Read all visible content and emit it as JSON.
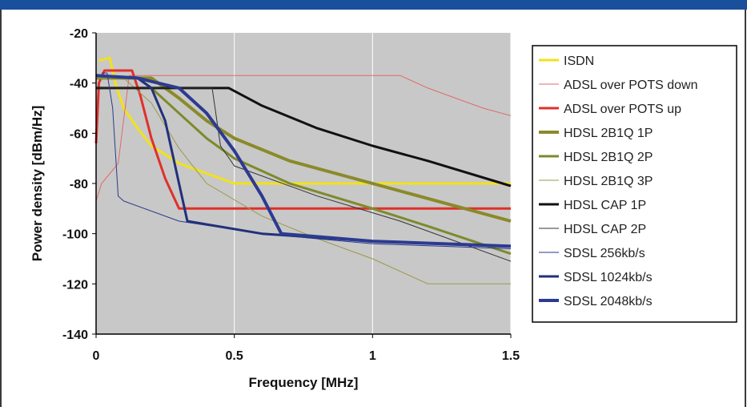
{
  "chart_data": {
    "type": "line",
    "xlabel": "Frequency [MHz]",
    "ylabel": "Power density [dBm/Hz]",
    "xlim": [
      0,
      1.5
    ],
    "ylim": [
      -140,
      -20
    ],
    "xticks": [
      0,
      0.5,
      1,
      1.5
    ],
    "xtick_labels": [
      "0",
      "0.5",
      "1",
      "1.5"
    ],
    "yticks": [
      -20,
      -40,
      -60,
      -80,
      -100,
      -120,
      -140
    ],
    "ytick_labels": [
      "-20",
      "-40",
      "-60",
      "-80",
      "-100",
      "-120",
      "-140"
    ],
    "grid": "vertical",
    "plot_background": "#c8c8c8",
    "legend_placement": "right",
    "series": [
      {
        "name": "ISDN",
        "color": "#f2e21a",
        "width": 3,
        "points": [
          [
            0.01,
            -31
          ],
          [
            0.05,
            -30
          ],
          [
            0.07,
            -40
          ],
          [
            0.1,
            -50
          ],
          [
            0.15,
            -58
          ],
          [
            0.2,
            -65
          ],
          [
            0.3,
            -72
          ],
          [
            0.4,
            -76
          ],
          [
            0.5,
            -80
          ],
          [
            0.8,
            -80
          ],
          [
            1.2,
            -80
          ],
          [
            1.5,
            -80
          ]
        ]
      },
      {
        "name": "ADSL over POTS down",
        "color": "#e06a6a",
        "width": 1,
        "points": [
          [
            0.0,
            -87
          ],
          [
            0.02,
            -80
          ],
          [
            0.05,
            -76
          ],
          [
            0.08,
            -72
          ],
          [
            0.12,
            -37
          ],
          [
            1.1,
            -37
          ],
          [
            1.2,
            -42
          ],
          [
            1.3,
            -46
          ],
          [
            1.4,
            -50
          ],
          [
            1.5,
            -53
          ]
        ]
      },
      {
        "name": "ADSL over POTS up",
        "color": "#e0302a",
        "width": 3,
        "points": [
          [
            0.0,
            -64
          ],
          [
            0.01,
            -40
          ],
          [
            0.03,
            -35
          ],
          [
            0.13,
            -35
          ],
          [
            0.16,
            -45
          ],
          [
            0.2,
            -62
          ],
          [
            0.25,
            -78
          ],
          [
            0.3,
            -90
          ],
          [
            0.8,
            -90
          ],
          [
            1.5,
            -90
          ]
        ]
      },
      {
        "name": "HDSL 2B1Q 1P",
        "color": "#8a8a2a",
        "width": 4,
        "points": [
          [
            0.0,
            -38
          ],
          [
            0.2,
            -38
          ],
          [
            0.3,
            -46
          ],
          [
            0.4,
            -55
          ],
          [
            0.5,
            -62
          ],
          [
            0.7,
            -71
          ],
          [
            1.0,
            -80
          ],
          [
            1.2,
            -86
          ],
          [
            1.5,
            -95
          ]
        ]
      },
      {
        "name": "HDSL 2B1Q 2P",
        "color": "#7e8a2c",
        "width": 3,
        "points": [
          [
            0.0,
            -38
          ],
          [
            0.15,
            -38
          ],
          [
            0.2,
            -42
          ],
          [
            0.3,
            -52
          ],
          [
            0.4,
            -62
          ],
          [
            0.5,
            -70
          ],
          [
            0.7,
            -80
          ],
          [
            1.0,
            -90
          ],
          [
            1.2,
            -97
          ],
          [
            1.5,
            -108
          ]
        ]
      },
      {
        "name": "HDSL 2B1Q 3P",
        "color": "#9a9a4a",
        "width": 1,
        "points": [
          [
            0.0,
            -38
          ],
          [
            0.1,
            -38
          ],
          [
            0.2,
            -48
          ],
          [
            0.3,
            -66
          ],
          [
            0.4,
            -80
          ],
          [
            0.6,
            -93
          ],
          [
            0.8,
            -102
          ],
          [
            1.0,
            -110
          ],
          [
            1.2,
            -120
          ],
          [
            1.5,
            -120
          ]
        ]
      },
      {
        "name": "HDSL CAP 1P",
        "color": "#111111",
        "width": 3,
        "points": [
          [
            0.0,
            -42
          ],
          [
            0.48,
            -42
          ],
          [
            0.6,
            -49
          ],
          [
            0.8,
            -58
          ],
          [
            1.0,
            -65
          ],
          [
            1.2,
            -71
          ],
          [
            1.5,
            -81
          ]
        ]
      },
      {
        "name": "HDSL CAP 2P",
        "color": "#333333",
        "width": 1,
        "points": [
          [
            0.0,
            -42
          ],
          [
            0.42,
            -42
          ],
          [
            0.45,
            -65
          ],
          [
            0.5,
            -73
          ],
          [
            0.8,
            -85
          ],
          [
            1.1,
            -95
          ],
          [
            1.5,
            -111
          ]
        ]
      },
      {
        "name": "SDSL 256kb/s",
        "color": "#2a3a8a",
        "width": 1,
        "points": [
          [
            0.02,
            -36
          ],
          [
            0.04,
            -36
          ],
          [
            0.06,
            -50
          ],
          [
            0.08,
            -85
          ],
          [
            0.1,
            -87
          ],
          [
            0.3,
            -95
          ],
          [
            0.6,
            -100
          ],
          [
            1.0,
            -104
          ],
          [
            1.5,
            -106
          ]
        ]
      },
      {
        "name": "SDSL 1024kb/s",
        "color": "#22307a",
        "width": 3,
        "points": [
          [
            0.0,
            -37
          ],
          [
            0.15,
            -38
          ],
          [
            0.2,
            -42
          ],
          [
            0.25,
            -55
          ],
          [
            0.3,
            -80
          ],
          [
            0.33,
            -95
          ],
          [
            0.6,
            -100
          ],
          [
            1.0,
            -103
          ],
          [
            1.5,
            -105
          ]
        ]
      },
      {
        "name": "SDSL 2048kb/s",
        "color": "#2c3a90",
        "width": 4,
        "points": [
          [
            0.0,
            -37
          ],
          [
            0.15,
            -38
          ],
          [
            0.3,
            -42
          ],
          [
            0.4,
            -52
          ],
          [
            0.5,
            -67
          ],
          [
            0.6,
            -85
          ],
          [
            0.67,
            -100
          ],
          [
            1.0,
            -103
          ],
          [
            1.5,
            -105
          ]
        ]
      }
    ]
  }
}
